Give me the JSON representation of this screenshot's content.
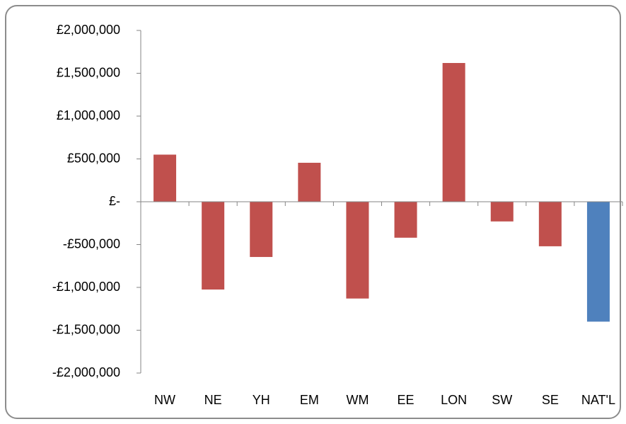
{
  "chart_data": {
    "type": "bar",
    "categories": [
      "NW",
      "NE",
      "YH",
      "EM",
      "WM",
      "EE",
      "LON",
      "SW",
      "SE",
      "NAT'L"
    ],
    "values": [
      550000,
      -1025000,
      -645000,
      455000,
      -1130000,
      -420000,
      1620000,
      -230000,
      -520000,
      -1400000
    ],
    "colors": [
      "#c0504d",
      "#c0504d",
      "#c0504d",
      "#c0504d",
      "#c0504d",
      "#c0504d",
      "#c0504d",
      "#c0504d",
      "#c0504d",
      "#4f81bd"
    ],
    "ylim": [
      -2000000,
      2000000
    ],
    "yticks": [
      {
        "value": -2000000,
        "label": "-£2,000,000"
      },
      {
        "value": -1500000,
        "label": "-£1,500,000"
      },
      {
        "value": -1000000,
        "label": "-£1,000,000"
      },
      {
        "value": -500000,
        "label": "-£500,000"
      },
      {
        "value": 0,
        "label": "£-"
      },
      {
        "value": 500000,
        "label": "£500,000"
      },
      {
        "value": 1000000,
        "label": "£1,000,000"
      },
      {
        "value": 1500000,
        "label": "£1,500,000"
      },
      {
        "value": 2000000,
        "label": "£2,000,000"
      }
    ],
    "grid": false
  }
}
